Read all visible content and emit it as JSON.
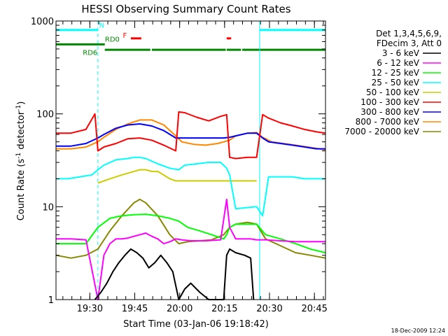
{
  "chart_data": {
    "type": "line",
    "title": "HESSI Observing Summary Count Rates",
    "xlabel": "Start Time (03-Jan-06 19:18:42)",
    "ylabel_main": "Count Rate (s",
    "ylabel_sup1": "-1",
    "ylabel_mid": " detector",
    "ylabel_sup2": "-1",
    "ylabel_end": ")",
    "ylabel_full": "Count Rate (s-1 detector-1)",
    "yscale": "log",
    "ylim": [
      1,
      1000
    ],
    "xlim": [
      0,
      90
    ],
    "x_units": "minutes after 19:18:42",
    "yticks": [
      {
        "value": 1,
        "label": "1"
      },
      {
        "value": 10,
        "label": "10"
      },
      {
        "value": 100,
        "label": "100"
      },
      {
        "value": 1000,
        "label": "1000"
      }
    ],
    "xticks": [
      {
        "value": 11.3,
        "label": "19:30"
      },
      {
        "value": 26.3,
        "label": "19:45"
      },
      {
        "value": 41.3,
        "label": "20:00"
      },
      {
        "value": 56.3,
        "label": "20:15"
      },
      {
        "value": 71.3,
        "label": "20:30"
      },
      {
        "value": 86.3,
        "label": "20:45"
      }
    ],
    "x_minor_step": 3,
    "legend_header": [
      "Det 1,3,4,5,6,9,",
      "FDecim 3, Att 0"
    ],
    "series": [
      {
        "name": "3 - 6 keV",
        "color": "#000000",
        "x": [
          13,
          15,
          17,
          19,
          21,
          23,
          25,
          27,
          29,
          31,
          33,
          35,
          37,
          39,
          41,
          43,
          45,
          48,
          51,
          54,
          56,
          57,
          58,
          60,
          63,
          65,
          66
        ],
        "values": [
          1,
          1.2,
          1.5,
          2,
          2.5,
          3,
          3.5,
          3.2,
          2.8,
          2.2,
          2.5,
          3,
          2.5,
          2,
          1,
          1.3,
          1.5,
          1.2,
          1,
          1,
          1,
          3,
          3.5,
          3.2,
          3,
          2.8,
          1
        ]
      },
      {
        "name": "6 - 12 keV",
        "color": "#ff00ff",
        "x": [
          0,
          5,
          10,
          14,
          16,
          18,
          20,
          22,
          24,
          26,
          28,
          30,
          32,
          34,
          36,
          38,
          40,
          42,
          45,
          50,
          55,
          57,
          58,
          60,
          65,
          67,
          70,
          75,
          80,
          85,
          90
        ],
        "values": [
          4.5,
          4.5,
          4.4,
          1,
          3,
          4,
          4.5,
          4.5,
          4.6,
          4.8,
          5,
          5.2,
          4.8,
          4.5,
          4,
          4.2,
          4.5,
          4.4,
          4.3,
          4.3,
          4.4,
          12,
          6,
          4.5,
          4.5,
          4.4,
          4.4,
          4.3,
          4.2,
          4.2,
          4.2
        ]
      },
      {
        "name": "12 - 25 keV",
        "color": "#00ff00",
        "x": [
          0,
          5,
          10,
          14,
          18,
          22,
          26,
          30,
          34,
          38,
          41,
          44,
          48,
          52,
          56,
          57,
          58,
          60,
          64,
          67,
          70,
          75,
          80,
          85,
          90
        ],
        "values": [
          4,
          4,
          4,
          6,
          7.5,
          8,
          8.2,
          8.3,
          8,
          7.5,
          7,
          6,
          5.5,
          5,
          4.5,
          5,
          6,
          6.5,
          6.5,
          6.5,
          5,
          4.5,
          4,
          3.5,
          3.2
        ]
      },
      {
        "name": "25 - 50 keV",
        "color": "#00ffff",
        "x": [
          0,
          4,
          8,
          12,
          14,
          16,
          20,
          24,
          26,
          28,
          30,
          34,
          38,
          41,
          43,
          47,
          51,
          55,
          57,
          58,
          60,
          64,
          67,
          69,
          71,
          75,
          79,
          83,
          87,
          90
        ],
        "values": [
          20,
          20,
          21,
          22,
          25,
          28,
          32,
          33,
          34,
          34,
          33,
          29,
          26,
          25,
          28,
          29,
          30,
          30,
          26,
          22,
          9.5,
          9.8,
          10,
          8,
          21,
          21,
          21,
          20,
          20,
          20
        ]
      },
      {
        "name": "50 - 100 keV",
        "color": "#cccc00",
        "x": [
          14,
          18,
          22,
          26,
          28,
          30,
          32,
          34,
          38,
          40,
          58,
          61,
          63,
          65,
          67
        ],
        "values": [
          18,
          20,
          22,
          24,
          25,
          25,
          24,
          24,
          20,
          19,
          19,
          19,
          19,
          19,
          19
        ]
      },
      {
        "name": "100 - 300 keV",
        "color": "#ff0000",
        "x": [
          0,
          5,
          10,
          13,
          14,
          16,
          20,
          24,
          28,
          32,
          36,
          40,
          41,
          43,
          47,
          51,
          55,
          57,
          58,
          60,
          64,
          67,
          69,
          71,
          75,
          79,
          83,
          87,
          90
        ],
        "values": [
          62,
          62,
          68,
          100,
          40,
          44,
          48,
          54,
          55,
          52,
          46,
          40,
          105,
          103,
          92,
          84,
          94,
          98,
          34,
          33,
          34,
          34,
          98,
          90,
          80,
          74,
          68,
          64,
          62
        ]
      },
      {
        "name": "300 - 800 keV",
        "color": "#0000ff",
        "x": [
          0,
          5,
          10,
          14,
          16,
          20,
          24,
          28,
          32,
          36,
          40,
          41,
          44,
          48,
          52,
          56,
          58,
          60,
          64,
          67,
          69,
          71,
          75,
          79,
          83,
          87,
          90
        ],
        "values": [
          45,
          45,
          48,
          55,
          60,
          70,
          76,
          78,
          74,
          66,
          55,
          55,
          55,
          55,
          55,
          55,
          56,
          58,
          62,
          62,
          55,
          50,
          48,
          46,
          44,
          42,
          42
        ]
      },
      {
        "name": "800 - 7000 keV",
        "color": "#ff8800",
        "x": [
          0,
          5,
          10,
          14,
          16,
          20,
          24,
          28,
          32,
          36,
          40,
          42,
          46,
          50,
          54,
          58,
          60,
          64,
          67,
          69,
          72,
          76,
          80,
          84,
          88,
          90
        ],
        "values": [
          42,
          42,
          44,
          50,
          56,
          68,
          78,
          86,
          86,
          76,
          58,
          50,
          47,
          46,
          48,
          52,
          58,
          62,
          63,
          56,
          50,
          48,
          46,
          44,
          42,
          41
        ]
      },
      {
        "name": "7000 - 20000 keV",
        "color": "#888800",
        "x": [
          0,
          5,
          10,
          14,
          18,
          22,
          26,
          28,
          30,
          34,
          38,
          41,
          44,
          48,
          52,
          56,
          58,
          60,
          64,
          67,
          70,
          75,
          80,
          85,
          90
        ],
        "values": [
          3,
          2.8,
          3,
          3.5,
          5.5,
          8,
          11,
          12,
          11,
          8,
          5,
          4,
          4.2,
          4.3,
          4.4,
          5,
          6,
          6.5,
          6.8,
          6.5,
          4.5,
          3.8,
          3.2,
          3,
          2.8
        ]
      }
    ],
    "annotations": [
      {
        "label": "N",
        "color": "#00ffff",
        "x": 15.3,
        "y": 850
      },
      {
        "label": "F",
        "color": "#ff0000",
        "x": 23,
        "y": 660
      },
      {
        "label": "RD0",
        "color": "#008800",
        "x": 18.8,
        "y": 600
      },
      {
        "label": "RD6",
        "color": "#008800",
        "x": 11.4,
        "y": 430
      }
    ],
    "state_bars": [
      {
        "name": "night",
        "color": "#00ffff",
        "level": 800,
        "segments": [
          [
            0,
            14
          ],
          [
            68,
            90
          ]
        ]
      },
      {
        "name": "flare",
        "color": "#ff0000",
        "level": 650,
        "segments": [
          [
            25,
            28.5
          ],
          [
            57,
            58.5
          ]
        ]
      },
      {
        "name": "rd0",
        "color": "#008800",
        "level": 560,
        "segments": [
          [
            0,
            16.3
          ]
        ]
      },
      {
        "name": "rd6",
        "color": "#008800",
        "level": 490,
        "segments": [
          [
            16.3,
            31.5
          ],
          [
            32,
            56.7
          ],
          [
            57,
            61.8
          ],
          [
            62.2,
            90
          ]
        ]
      }
    ],
    "night_markers": [
      {
        "x": 0,
        "style": "solid"
      },
      {
        "x": 14,
        "style": "dashed"
      },
      {
        "x": 68,
        "style": "solid"
      },
      {
        "x": 90,
        "style": "dashed"
      }
    ],
    "grid": false,
    "legend_position": "right"
  },
  "footer": {
    "timestamp": "18-Dec-2009 12:24"
  }
}
